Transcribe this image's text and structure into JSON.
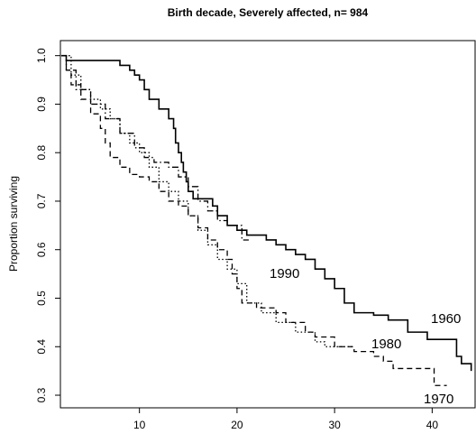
{
  "chart_data": {
    "type": "step",
    "title": "Birth decade, Severely affected, n= 984",
    "y_label": "Proportion surviving",
    "xlim": [
      1.9,
      44.4
    ],
    "ylim": [
      0.274,
      1.031
    ],
    "xticks": [
      10,
      20,
      30,
      40
    ],
    "yticks": [
      0.3,
      0.4,
      0.5,
      0.6,
      0.7,
      0.8,
      0.9,
      {
        "value": 1,
        "label": "1.0"
      }
    ],
    "series": [
      {
        "name": "1960",
        "color": "#000000",
        "linestyle": "solid",
        "x": [
          2,
          2.5,
          8,
          9,
          9.5,
          10,
          10.5,
          11,
          12,
          13,
          13.5,
          13.7,
          14,
          14.3,
          14.5,
          14.8,
          15,
          15.5,
          17.5,
          18,
          19,
          20,
          21,
          23,
          24,
          25,
          26,
          27,
          28,
          29,
          30,
          31,
          32,
          34,
          35.5,
          37.5,
          39.5,
          42.5,
          43,
          44
        ],
        "values": [
          1,
          0.99,
          0.98,
          0.97,
          0.96,
          0.95,
          0.93,
          0.91,
          0.89,
          0.87,
          0.85,
          0.82,
          0.8,
          0.78,
          0.76,
          0.74,
          0.72,
          0.705,
          0.69,
          0.67,
          0.65,
          0.64,
          0.63,
          0.62,
          0.61,
          0.6,
          0.59,
          0.58,
          0.56,
          0.54,
          0.52,
          0.49,
          0.47,
          0.465,
          0.455,
          0.43,
          0.415,
          0.38,
          0.365,
          0.35
        ]
      },
      {
        "name": "1970",
        "color": "#000000",
        "linestyle": "dashed",
        "x": [
          2,
          2.5,
          3,
          4,
          5,
          6,
          6.5,
          7,
          8,
          9,
          10,
          11,
          12,
          13,
          14,
          15,
          16,
          17,
          18,
          19,
          19.5,
          20,
          20.5,
          22,
          24,
          25,
          27,
          28,
          30,
          32,
          34,
          35,
          36,
          40.2,
          41.5
        ],
        "values": [
          1,
          0.97,
          0.94,
          0.91,
          0.88,
          0.85,
          0.82,
          0.79,
          0.77,
          0.755,
          0.75,
          0.74,
          0.72,
          0.7,
          0.69,
          0.67,
          0.645,
          0.62,
          0.6,
          0.58,
          0.55,
          0.52,
          0.49,
          0.48,
          0.47,
          0.45,
          0.43,
          0.42,
          0.4,
          0.39,
          0.38,
          0.37,
          0.355,
          0.32,
          0.32
        ]
      },
      {
        "name": "1980",
        "color": "#000000",
        "linestyle": "dotted",
        "x": [
          2,
          3,
          4,
          5,
          6,
          7,
          8,
          9,
          10,
          11,
          12,
          13,
          14,
          15,
          16,
          17,
          18,
          19,
          20,
          21,
          22.5,
          24,
          26,
          28,
          29,
          32
        ],
        "values": [
          1,
          0.96,
          0.93,
          0.91,
          0.89,
          0.87,
          0.84,
          0.82,
          0.8,
          0.77,
          0.74,
          0.72,
          0.7,
          0.67,
          0.64,
          0.61,
          0.58,
          0.56,
          0.53,
          0.49,
          0.47,
          0.45,
          0.43,
          0.41,
          0.4,
          0.4
        ]
      },
      {
        "name": "1990",
        "color": "#000000",
        "linestyle": "dashdot",
        "x": [
          2,
          2.5,
          3.5,
          5,
          6.5,
          8,
          9.5,
          10.5,
          11.5,
          13,
          14,
          15,
          16,
          17,
          18,
          19,
          20.5,
          21.2
        ],
        "values": [
          1,
          0.97,
          0.93,
          0.9,
          0.87,
          0.84,
          0.81,
          0.79,
          0.78,
          0.77,
          0.75,
          0.73,
          0.7,
          0.68,
          0.66,
          0.65,
          0.62,
          0.62
        ]
      }
    ]
  }
}
